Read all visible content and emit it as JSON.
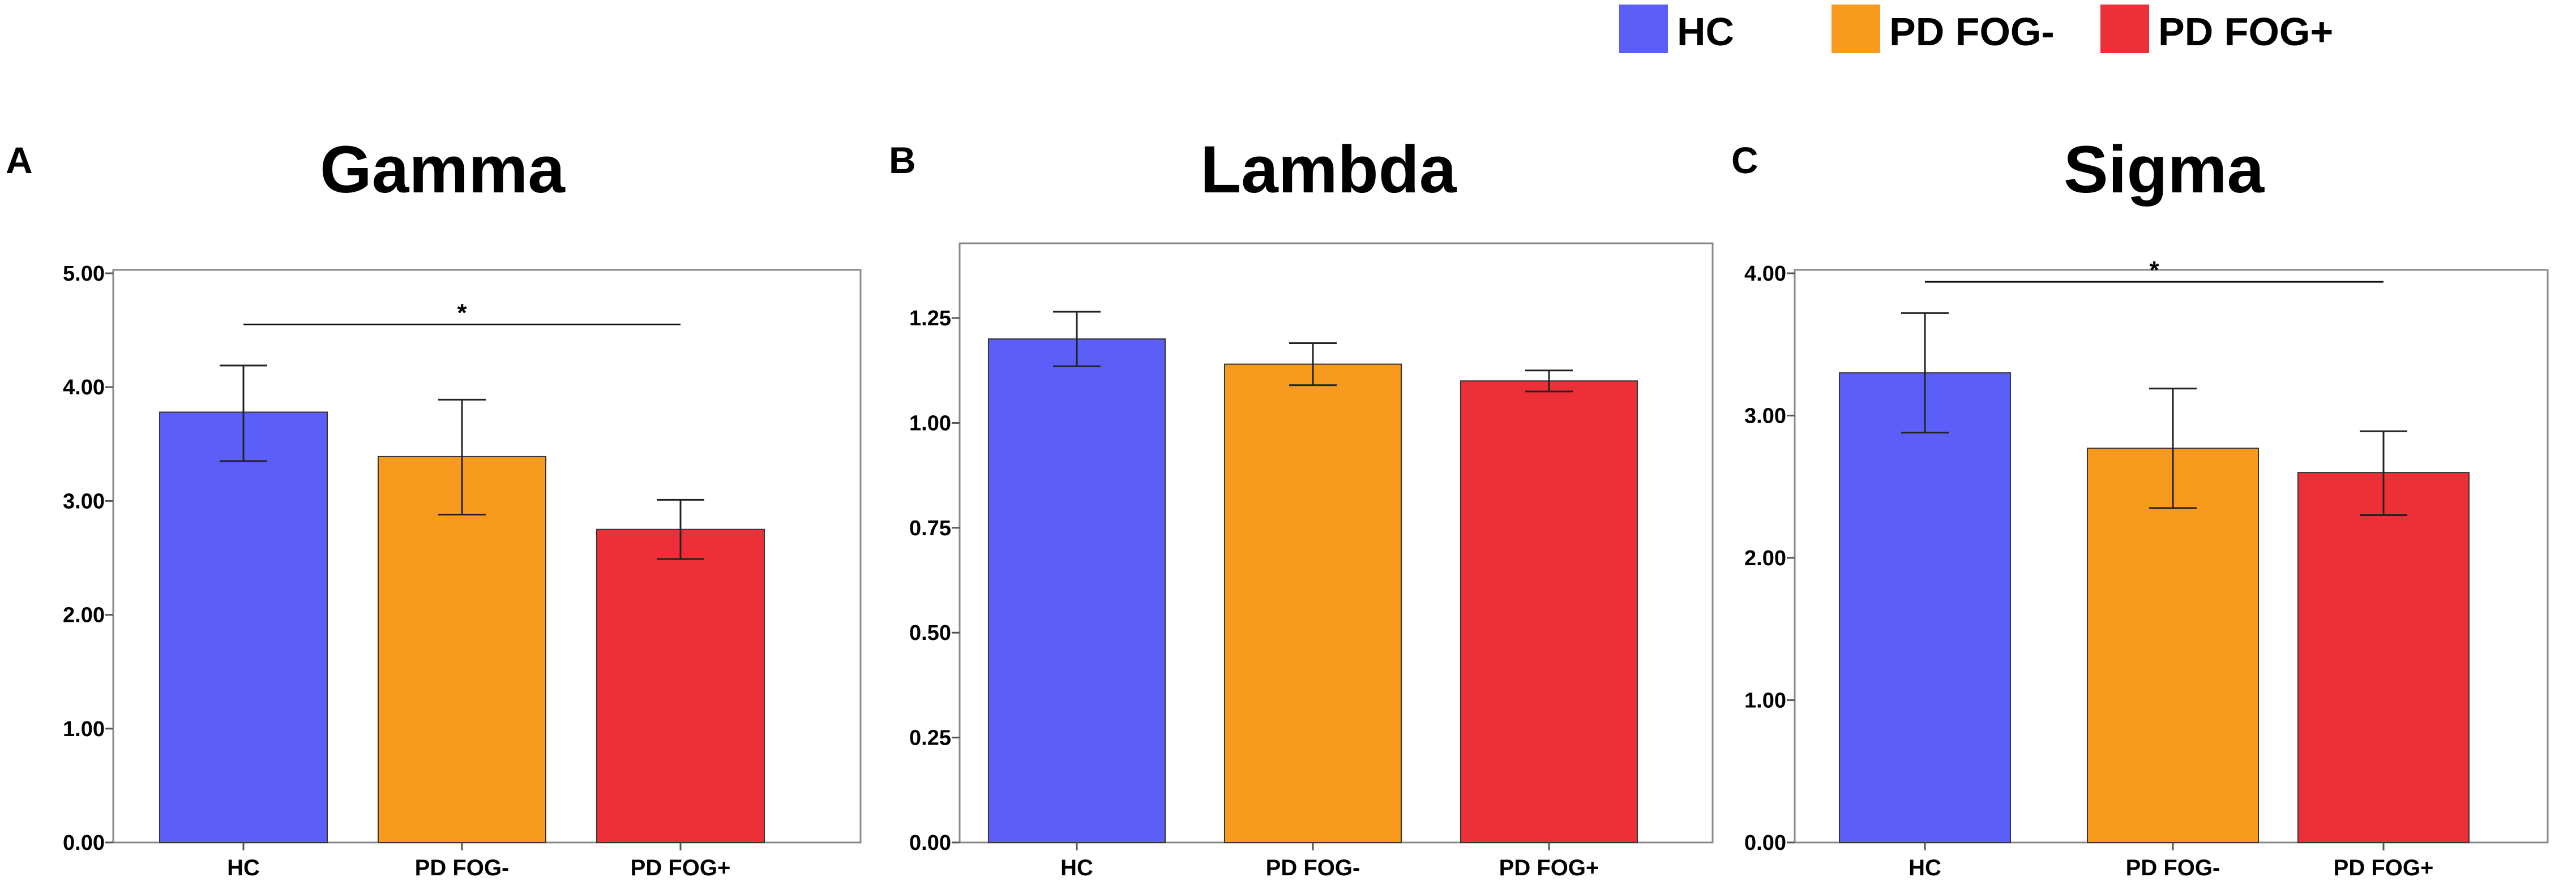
{
  "legend": {
    "items": [
      {
        "label": "HC",
        "color": "#5b5ef7"
      },
      {
        "label": "PD FOG-",
        "color": "#f89a1e"
      },
      {
        "label": "PD FOG+",
        "color": "#ed2f38"
      }
    ]
  },
  "chart_data": [
    {
      "panel": "A",
      "type": "bar",
      "title": "Gamma",
      "categories": [
        "HC",
        "PD FOG-",
        "PD FOG+"
      ],
      "values": [
        3.78,
        3.39,
        2.75
      ],
      "error_low": [
        3.35,
        2.88,
        2.49
      ],
      "error_high": [
        4.19,
        3.89,
        3.01
      ],
      "ylim": [
        0,
        5.0
      ],
      "yticks": [
        0,
        1,
        2,
        3,
        4,
        5
      ],
      "ytick_labels": [
        "0.00",
        "1.00",
        "2.00",
        "3.00",
        "4.00",
        "5.00"
      ],
      "colors": [
        "#5b5ef7",
        "#f89a1e",
        "#ed2f38"
      ],
      "significance": [
        {
          "from": 0,
          "to": 2,
          "y": 4.55,
          "label": "*"
        }
      ],
      "xlabel": "",
      "ylabel": ""
    },
    {
      "panel": "B",
      "type": "bar",
      "title": "Lambda",
      "categories": [
        "HC",
        "PD FOG-",
        "PD FOG+"
      ],
      "values": [
        1.2,
        1.14,
        1.1
      ],
      "error_low": [
        1.135,
        1.09,
        1.075
      ],
      "error_high": [
        1.265,
        1.19,
        1.125
      ],
      "ylim": [
        0,
        1.42
      ],
      "yticks": [
        0,
        0.25,
        0.5,
        0.75,
        1.0,
        1.25
      ],
      "ytick_labels": [
        "0.00",
        "0.25",
        "0.50",
        "0.75",
        "1.00",
        "1.25"
      ],
      "colors": [
        "#5b5ef7",
        "#f89a1e",
        "#ed2f38"
      ],
      "significance": [],
      "xlabel": "",
      "ylabel": ""
    },
    {
      "panel": "C",
      "type": "bar",
      "title": "Sigma",
      "categories": [
        "HC",
        "PD FOG-",
        "PD FOG+"
      ],
      "values": [
        3.3,
        2.77,
        2.6
      ],
      "error_low": [
        2.88,
        2.35,
        2.3
      ],
      "error_high": [
        3.72,
        3.19,
        2.89
      ],
      "ylim": [
        0,
        4.0
      ],
      "yticks": [
        0,
        1,
        2,
        3,
        4
      ],
      "ytick_labels": [
        "0.00",
        "1.00",
        "2.00",
        "3.00",
        "4.00"
      ],
      "colors": [
        "#5b5ef7",
        "#f89a1e",
        "#ed2f38"
      ],
      "significance": [
        {
          "from": 0,
          "to": 2,
          "y": 3.94,
          "label": "*"
        }
      ],
      "xlabel": "",
      "ylabel": ""
    }
  ]
}
